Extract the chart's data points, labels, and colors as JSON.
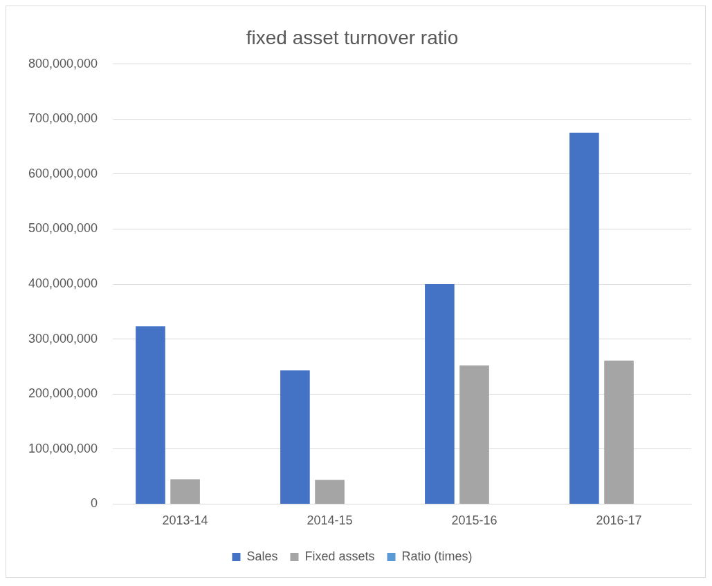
{
  "chart_data": {
    "type": "bar",
    "title": "fixed asset turnover ratio",
    "categories": [
      "2013-14",
      "2014-15",
      "2015-16",
      "2016-17"
    ],
    "series": [
      {
        "name": "Sales",
        "color": "#4472c4",
        "values": [
          323000000,
          243000000,
          400000000,
          675000000
        ]
      },
      {
        "name": "Fixed assets",
        "color": "#a5a5a5",
        "values": [
          45000000,
          44000000,
          252000000,
          261000000
        ]
      },
      {
        "name": "Ratio (times)",
        "color": "#5b9bd5",
        "values": [
          0,
          0,
          0,
          0
        ]
      }
    ],
    "ylim": [
      0,
      800000000
    ],
    "yticks": [
      0,
      {
        "value": 100000000,
        "label": "100,000,000"
      },
      {
        "value": 200000000,
        "label": "200,000,000"
      },
      {
        "value": 300000000,
        "label": "300,000,000"
      },
      {
        "value": 400000000,
        "label": "400,000,000"
      },
      {
        "value": 500000000,
        "label": "500,000,000"
      },
      {
        "value": 600000000,
        "label": "600,000,000"
      },
      {
        "value": 700000000,
        "label": "700,000,000"
      },
      {
        "value": 800000000,
        "label": "800,000,000"
      }
    ],
    "grid": "y",
    "legend": "bottom"
  }
}
